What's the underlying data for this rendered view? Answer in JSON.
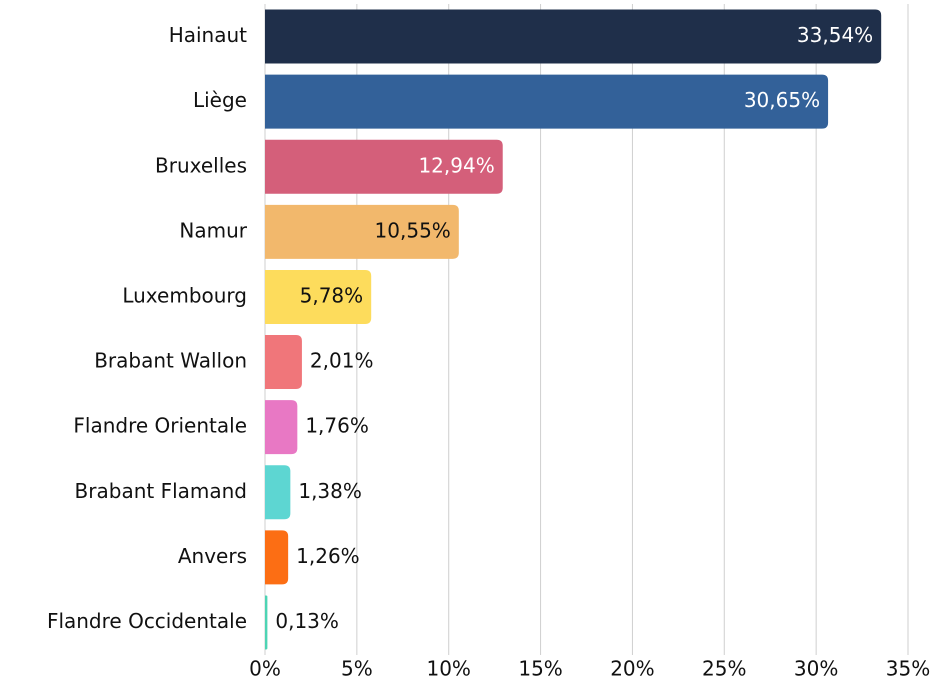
{
  "chart_data": {
    "type": "hbar",
    "categories": [
      "Hainaut",
      "Liège",
      "Bruxelles",
      "Namur",
      "Luxembourg",
      "Brabant Wallon",
      "Flandre Orientale",
      "Brabant Flamand",
      "Anvers",
      "Flandre Occidentale"
    ],
    "values": [
      33.54,
      30.65,
      12.94,
      10.55,
      5.78,
      2.01,
      1.76,
      1.38,
      1.26,
      0.13
    ],
    "value_labels": [
      "33,54%",
      "30,65%",
      "12,94%",
      "10,55%",
      "5,78%",
      "2,01%",
      "1,76%",
      "1,38%",
      "1,26%",
      "0,13%"
    ],
    "colors": [
      "#1f2f4a",
      "#336199",
      "#d45f7a",
      "#f2b86c",
      "#fddc5c",
      "#f0767a",
      "#e878c4",
      "#5dd6d2",
      "#fc6e14",
      "#4dd4b4"
    ],
    "xlim": [
      0,
      35
    ],
    "xticks": [
      {
        "value": 0,
        "label": "0%"
      },
      {
        "value": 5,
        "label": "5%"
      },
      {
        "value": 10,
        "label": "10%"
      },
      {
        "value": 15,
        "label": "15%"
      },
      {
        "value": 20,
        "label": "20%"
      },
      {
        "value": 25,
        "label": "25%"
      },
      {
        "value": 30,
        "label": "30%"
      },
      {
        "value": 35,
        "label": "35%"
      }
    ],
    "grid": true
  }
}
